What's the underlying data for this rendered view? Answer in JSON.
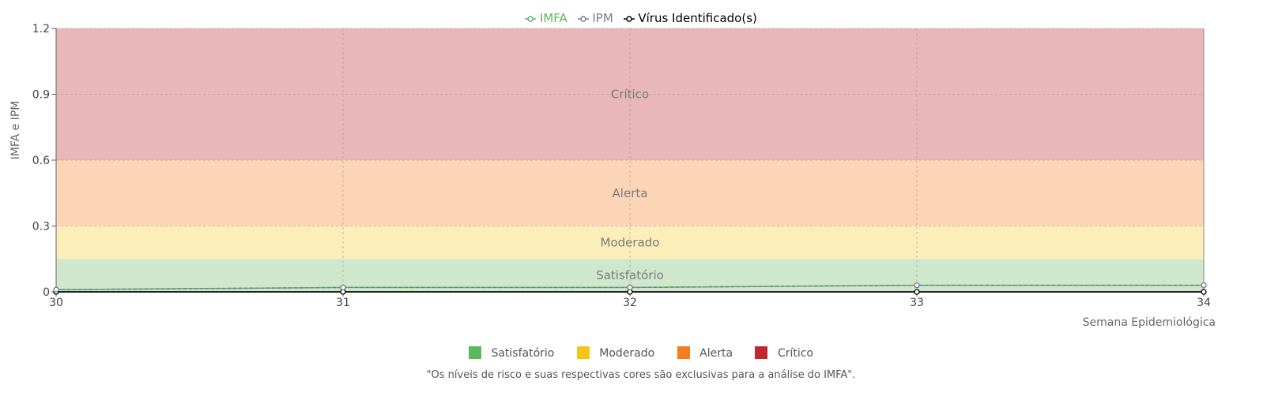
{
  "chart_data": {
    "type": "line",
    "xlabel": "Semana Epidemiológica",
    "ylabel": "IMFA e IPM",
    "ylim": [
      0,
      1.2
    ],
    "yticks": [
      "0",
      "0.3",
      "0.6",
      "0.9",
      "1.2"
    ],
    "ytick_values": [
      0,
      0.3,
      0.6,
      0.9,
      1.2
    ],
    "x": [
      30,
      31,
      32,
      33,
      34
    ],
    "xticks": [
      "30",
      "31",
      "32",
      "33",
      "34"
    ],
    "grid": true,
    "legend_position": "top-center",
    "series": [
      {
        "name": "IMFA",
        "values": [
          0.01,
          0.02,
          0.02,
          0.03,
          0.03
        ],
        "color": "#5cb85c"
      },
      {
        "name": "IPM",
        "values": [
          0.01,
          0.02,
          0.02,
          0.03,
          0.03
        ],
        "color": "#7a7a8c"
      },
      {
        "name": "Vírus Identificado(s)",
        "values": [
          0,
          0,
          0,
          0,
          0
        ],
        "color": "#000000"
      }
    ],
    "bands": [
      {
        "label": "Satisfatório",
        "from": 0,
        "to": 0.15,
        "color": "#cfe8cc"
      },
      {
        "label": "Moderado",
        "from": 0.15,
        "to": 0.3,
        "color": "#fbeeb8"
      },
      {
        "label": "Alerta",
        "from": 0.3,
        "to": 0.6,
        "color": "#fcd5b7"
      },
      {
        "label": "Crítico",
        "from": 0.6,
        "to": 1.2,
        "color": "#e9b7b7"
      }
    ]
  },
  "risk_legend": [
    {
      "label": "Satisfatório",
      "color": "#5cb85c"
    },
    {
      "label": "Moderado",
      "color": "#f5c518"
    },
    {
      "label": "Alerta",
      "color": "#f57c1f"
    },
    {
      "label": "Crítico",
      "color": "#c0282d"
    }
  ],
  "footnote": "\"Os níveis de risco e suas respectivas cores são exclusivas para a análise do IMFA\"."
}
